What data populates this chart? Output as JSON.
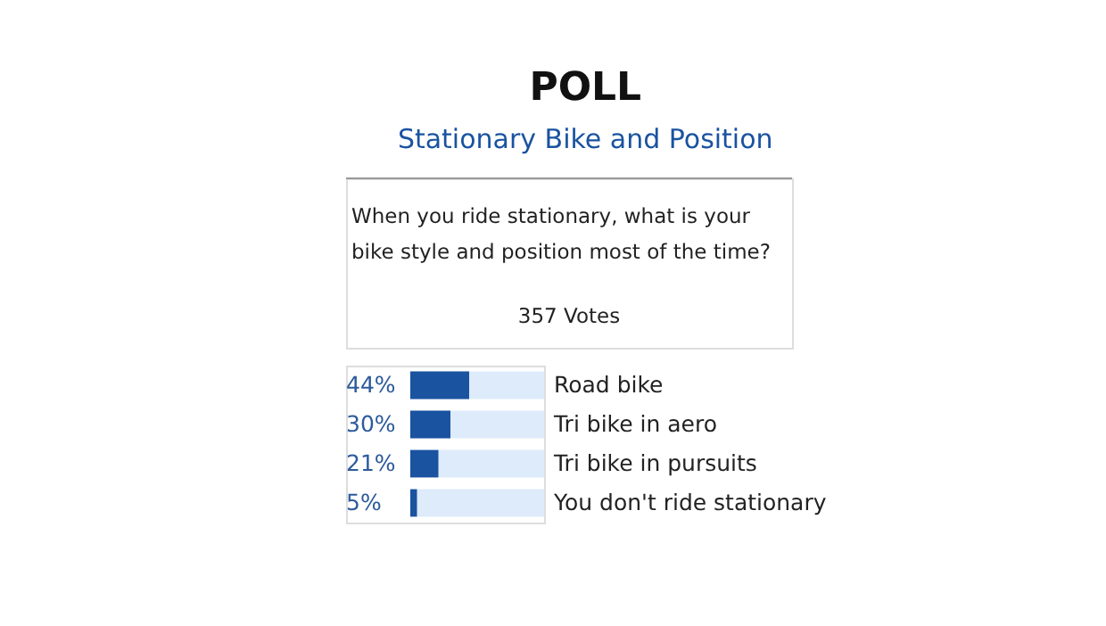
{
  "chart_data": {
    "type": "bar",
    "orientation": "horizontal",
    "title": "POLL",
    "subtitle": "Stationary Bike and Position",
    "annotations": [
      "When you ride stationary, what is your bike style and position most of the time?",
      "357 Votes"
    ],
    "categories": [
      "Road bike",
      "Tri bike in aero",
      "Tri bike in pursuits",
      "You don't ride stationary"
    ],
    "values": [
      44,
      30,
      21,
      5
    ],
    "value_labels": [
      "44%",
      "30%",
      "21%",
      "5%"
    ],
    "color": "#1a53a0",
    "xlim": [
      0,
      100
    ],
    "tick_labels": "y"
  }
}
